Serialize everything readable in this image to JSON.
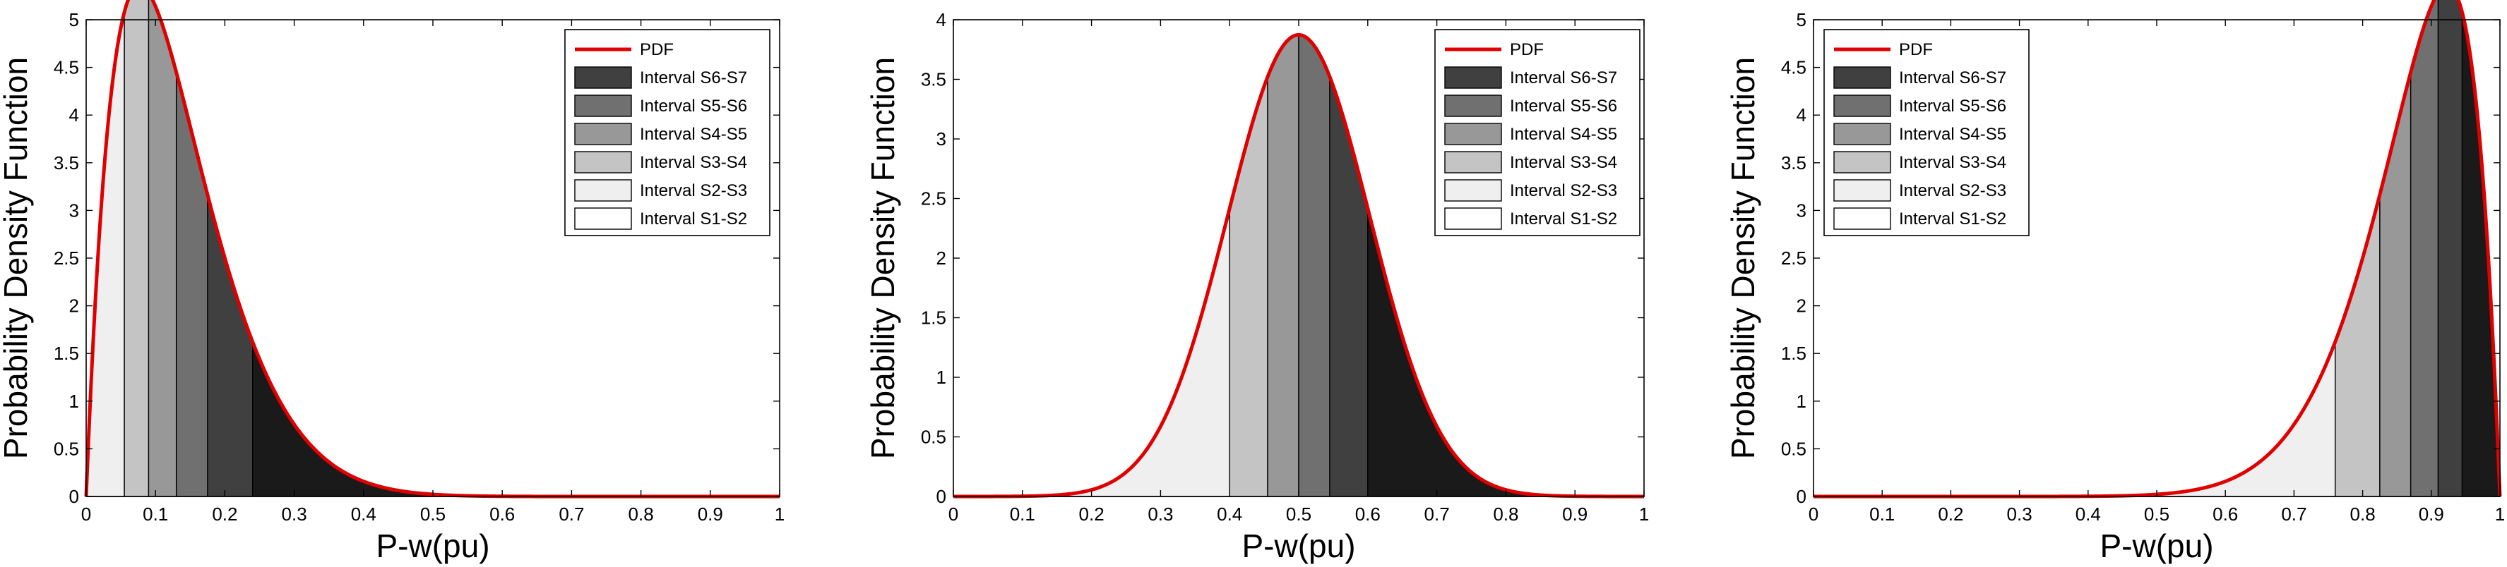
{
  "chart_data": [
    {
      "type": "area",
      "xlabel": "P-w(pu)",
      "ylabel": "Probability Density Function",
      "xlim": [
        0,
        1
      ],
      "ylim": [
        0,
        5
      ],
      "xticks": [
        "0",
        "0.1",
        "0.2",
        "0.3",
        "0.4",
        "0.5",
        "0.6",
        "0.7",
        "0.8",
        "0.9",
        "1"
      ],
      "yticks": [
        "0",
        "0.5",
        "1",
        "1.5",
        "2",
        "2.5",
        "3",
        "3.5",
        "4",
        "4.5",
        "5"
      ],
      "grid": false,
      "legend_position": "top-right",
      "pdf": {
        "name": "PDF",
        "distribution": "beta",
        "alpha": 2.0,
        "beta": 13.0
      },
      "intervals": [
        {
          "name": "Interval S6-S7",
          "from": 0.24,
          "to": 1.0,
          "color": "#1a1a1a"
        },
        {
          "name": "Interval S5-S6",
          "from": 0.175,
          "to": 0.24,
          "color": "#404040"
        },
        {
          "name": "Interval S4-S5",
          "from": 0.13,
          "to": 0.175,
          "color": "#707070"
        },
        {
          "name": "Interval S3-S4",
          "from": 0.09,
          "to": 0.13,
          "color": "#989898"
        },
        {
          "name": "Interval S2-S3",
          "from": 0.055,
          "to": 0.09,
          "color": "#c4c4c4"
        },
        {
          "name": "Interval S1-S2",
          "from": 0.0,
          "to": 0.055,
          "color": "#efefef"
        }
      ],
      "legend": [
        "PDF",
        "Interval S6-S7",
        "Interval S5-S6",
        "Interval S4-S5",
        "Interval S3-S4",
        "Interval S2-S3",
        "Interval S1-S2"
      ]
    },
    {
      "type": "area",
      "xlabel": "P-w(pu)",
      "ylabel": "Probability Density Function",
      "xlim": [
        0,
        1
      ],
      "ylim": [
        0,
        4
      ],
      "xticks": [
        "0",
        "0.1",
        "0.2",
        "0.3",
        "0.4",
        "0.5",
        "0.6",
        "0.7",
        "0.8",
        "0.9",
        "1"
      ],
      "yticks": [
        "0",
        "0.5",
        "1",
        "1.5",
        "2",
        "2.5",
        "3",
        "3.5",
        "4"
      ],
      "grid": false,
      "legend_position": "top-right",
      "pdf": {
        "name": "PDF",
        "distribution": "normal",
        "mean": 0.5,
        "sd": 0.103
      },
      "intervals": [
        {
          "name": "Interval S1-S2",
          "from": 0.0,
          "to": 0.4,
          "color": "#efefef"
        },
        {
          "name": "Interval S2-S3",
          "from": 0.4,
          "to": 0.455,
          "color": "#c4c4c4"
        },
        {
          "name": "Interval S3-S4",
          "from": 0.455,
          "to": 0.5,
          "color": "#989898"
        },
        {
          "name": "Interval S4-S5",
          "from": 0.5,
          "to": 0.545,
          "color": "#707070"
        },
        {
          "name": "Interval S5-S6",
          "from": 0.545,
          "to": 0.6,
          "color": "#404040"
        },
        {
          "name": "Interval S6-S7",
          "from": 0.6,
          "to": 1.0,
          "color": "#1a1a1a"
        }
      ],
      "legend": [
        "PDF",
        "Interval S6-S7",
        "Interval S5-S6",
        "Interval S4-S5",
        "Interval S3-S4",
        "Interval S2-S3",
        "Interval S1-S2"
      ]
    },
    {
      "type": "area",
      "xlabel": "P-w(pu)",
      "ylabel": "Probability Density Function",
      "xlim": [
        0,
        1
      ],
      "ylim": [
        0,
        5
      ],
      "xticks": [
        "0",
        "0.1",
        "0.2",
        "0.3",
        "0.4",
        "0.5",
        "0.6",
        "0.7",
        "0.8",
        "0.9",
        "1"
      ],
      "yticks": [
        "0",
        "0.5",
        "1",
        "1.5",
        "2",
        "2.5",
        "3",
        "3.5",
        "4",
        "4.5",
        "5"
      ],
      "grid": false,
      "legend_position": "top-left",
      "pdf": {
        "name": "PDF",
        "distribution": "beta",
        "alpha": 13.0,
        "beta": 2.0
      },
      "intervals": [
        {
          "name": "Interval S1-S2",
          "from": 0.0,
          "to": 0.76,
          "color": "#efefef"
        },
        {
          "name": "Interval S2-S3",
          "from": 0.76,
          "to": 0.825,
          "color": "#c4c4c4"
        },
        {
          "name": "Interval S3-S4",
          "from": 0.825,
          "to": 0.87,
          "color": "#989898"
        },
        {
          "name": "Interval S4-S5",
          "from": 0.87,
          "to": 0.91,
          "color": "#707070"
        },
        {
          "name": "Interval S5-S6",
          "from": 0.91,
          "to": 0.945,
          "color": "#404040"
        },
        {
          "name": "Interval S6-S7",
          "from": 0.945,
          "to": 1.0,
          "color": "#1a1a1a"
        }
      ],
      "legend": [
        "PDF",
        "Interval S6-S7",
        "Interval S5-S6",
        "Interval S4-S5",
        "Interval S3-S4",
        "Interval S2-S3",
        "Interval S1-S2"
      ]
    }
  ],
  "colors": {
    "pdf_line": "#e00000",
    "axis": "#000000",
    "legend_swatches": [
      "#404040",
      "#707070",
      "#989898",
      "#c4c4c4",
      "#efefef",
      "#ffffff"
    ]
  }
}
